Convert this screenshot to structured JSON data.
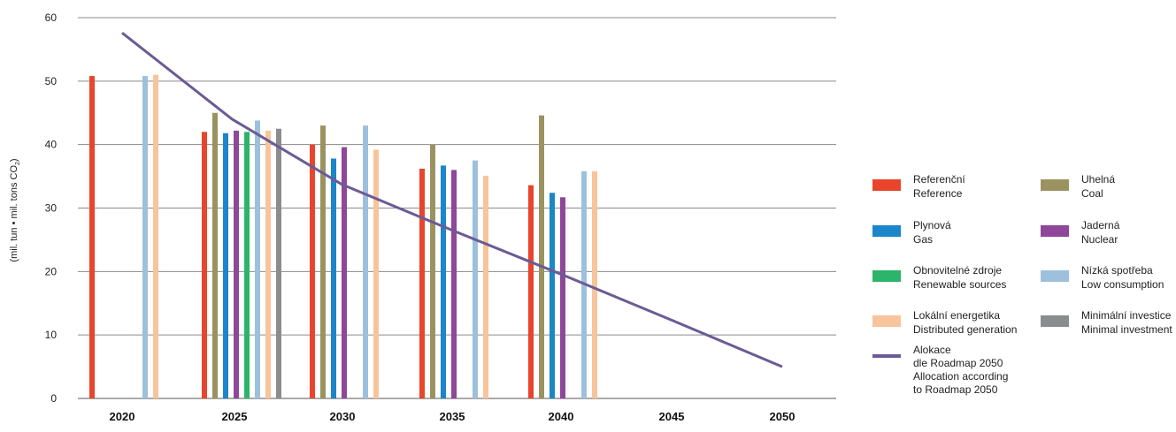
{
  "chart_data": {
    "type": "bar",
    "ylabel": "(mil. tun • mil. tons CO",
    "ylabel_sub": "2",
    "ylabel_close": ")",
    "ylim": [
      0,
      60
    ],
    "yticks": [
      "0",
      "10",
      "20",
      "30",
      "40",
      "50",
      "60"
    ],
    "categories": [
      "2020",
      "2025",
      "2030",
      "2035",
      "2040",
      "2045",
      "2050"
    ],
    "grid": true,
    "legend_position": "right",
    "series": [
      {
        "key": "reference",
        "name": "Referenční",
        "name2": "Reference",
        "color": "#e8452c",
        "values": [
          50.8,
          42.0,
          40.0,
          36.2,
          33.6,
          null,
          null
        ]
      },
      {
        "key": "coal",
        "name": "Uhelná",
        "name2": "Coal",
        "color": "#9a9360",
        "values": [
          null,
          45.0,
          43.0,
          40.0,
          44.6,
          null,
          null
        ]
      },
      {
        "key": "gas",
        "name": "Plynová",
        "name2": "Gas",
        "color": "#1b86c9",
        "values": [
          null,
          41.8,
          37.8,
          36.7,
          32.4,
          null,
          null
        ]
      },
      {
        "key": "nuclear",
        "name": "Jaderná",
        "name2": "Nuclear",
        "color": "#8e4799",
        "values": [
          null,
          42.2,
          39.6,
          36.0,
          31.7,
          null,
          null
        ]
      },
      {
        "key": "renewable",
        "name": "Obnovitelné zdroje",
        "name2": "Renewable sources",
        "color": "#2cb46a",
        "values": [
          null,
          42.0,
          null,
          null,
          null,
          null,
          null
        ]
      },
      {
        "key": "low",
        "name": "Nízká spotřeba",
        "name2": "Low consumption",
        "color": "#9dc0dd",
        "values": [
          50.8,
          43.8,
          43.0,
          37.5,
          35.8,
          null,
          null
        ]
      },
      {
        "key": "distributed",
        "name": "Lokální energetika",
        "name2": "Distributed generation",
        "color": "#f8c49b",
        "values": [
          51.0,
          42.2,
          39.2,
          35.1,
          35.8,
          null,
          null
        ]
      },
      {
        "key": "minimal",
        "name": "Minimální investice",
        "name2": "Minimal investment",
        "color": "#8a8c8e",
        "values": [
          null,
          42.5,
          null,
          null,
          null,
          null,
          null
        ]
      }
    ],
    "line_series": {
      "name": "Alokace",
      "name_lines": [
        "Alokace",
        "dle Roadmap 2050",
        "Allocation according",
        "to Roadmap 2050"
      ],
      "color": "#6b5b95",
      "points": [
        {
          "x": 2020,
          "y": 57.6
        },
        {
          "x": 2025,
          "y": 44.0
        },
        {
          "x": 2030,
          "y": 33.7
        },
        {
          "x": 2035,
          "y": 26.5
        },
        {
          "x": 2040,
          "y": 19.5
        },
        {
          "x": 2045,
          "y": 12.3
        },
        {
          "x": 2050,
          "y": 5.0
        }
      ]
    }
  }
}
